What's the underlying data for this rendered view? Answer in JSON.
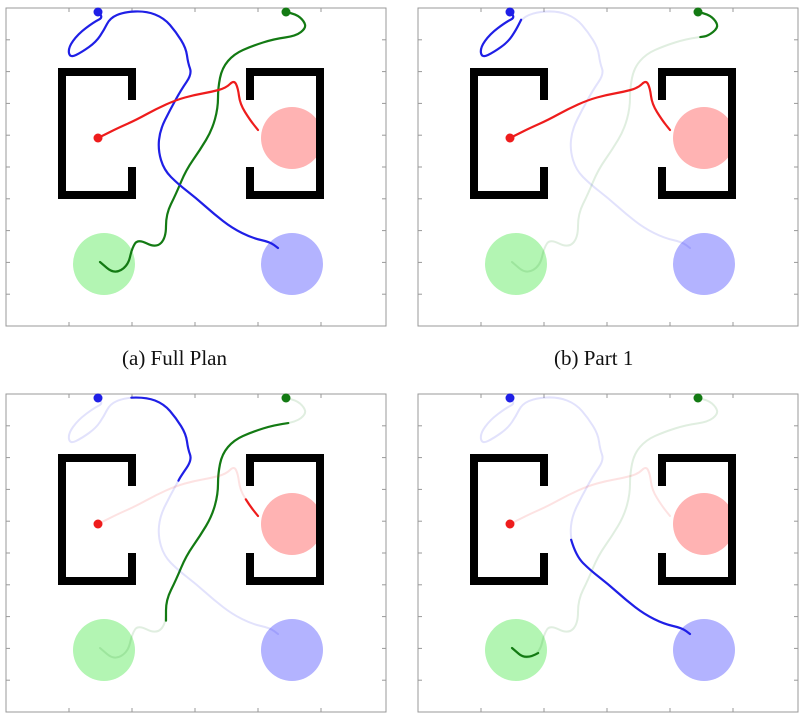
{
  "colors": {
    "red": "#ee1c1c",
    "blue": "#1f1fe6",
    "green": "#137a13",
    "red_goal": "#ffb3b3",
    "blue_goal": "#b3b3ff",
    "green_goal": "#b3f5b3",
    "wall": "#000000",
    "frame": "#999999"
  },
  "panels": [
    {
      "id": "a",
      "caption": "(a) Full Plan",
      "highlight": {
        "red": [
          0,
          1
        ],
        "blue": [
          0,
          1
        ],
        "green": [
          0,
          1
        ]
      }
    },
    {
      "id": "b",
      "caption": "(b) Part 1",
      "highlight": {
        "red": [
          0,
          1
        ],
        "blue": [
          0,
          0.25
        ],
        "green": [
          0,
          0.12
        ]
      }
    },
    {
      "id": "c",
      "caption": "",
      "highlight": {
        "red": [
          0.9,
          1
        ],
        "blue": [
          0.3,
          0.55
        ],
        "green": [
          0.12,
          0.75
        ]
      }
    },
    {
      "id": "d",
      "caption": "",
      "highlight": {
        "red": [
          1,
          1
        ],
        "blue": [
          0.68,
          1
        ],
        "green": [
          0.92,
          1
        ]
      }
    }
  ]
}
